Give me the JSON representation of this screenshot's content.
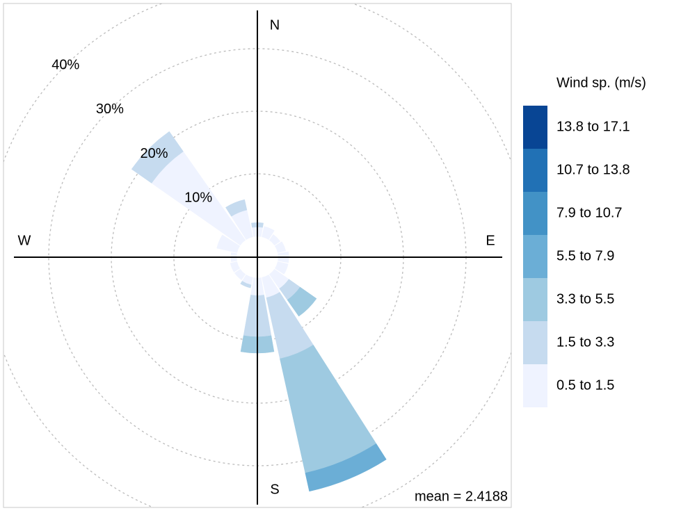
{
  "chart_data": {
    "type": "windrose",
    "x": [
      0,
      22.5,
      45,
      67.5,
      90,
      112.5,
      135,
      157.5,
      180,
      202.5,
      225,
      247.5,
      270,
      292.5,
      315,
      337.5
    ],
    "series": [
      {
        "name": "0.5 to 1.5",
        "color": "#eff3ff",
        "values": [
          1.5,
          1.7,
          1.1,
          1.3,
          1.7,
          1.7,
          2.8,
          3.3,
          2.8,
          1.2,
          1.1,
          1.1,
          0.9,
          3.3,
          17.3,
          4.4
        ]
      },
      {
        "name": "1.5 to 3.3",
        "color": "#c6dbef",
        "values": [
          0.7,
          0,
          0,
          0,
          0,
          0,
          2.2,
          10,
          6.6,
          0.5,
          0,
          0,
          0,
          0,
          3.9,
          1.7
        ]
      },
      {
        "name": "3.3 to 5.5",
        "color": "#9ecae1",
        "values": [
          0,
          0,
          0,
          0,
          0,
          0,
          3.2,
          18.7,
          2.6,
          0,
          0,
          0,
          0,
          0,
          0,
          0
        ]
      },
      {
        "name": "5.5 to 7.9",
        "color": "#6baed6",
        "values": [
          0,
          0,
          0,
          0,
          0,
          0,
          0,
          3,
          0,
          0,
          0,
          0,
          0,
          0,
          0,
          0
        ]
      },
      {
        "name": "7.9 to 10.7",
        "color": "#4292c6",
        "values": [
          0,
          0,
          0,
          0,
          0,
          0,
          0,
          0,
          0,
          0,
          0,
          0,
          0,
          0,
          0,
          0
        ]
      },
      {
        "name": "10.7 to 13.8",
        "color": "#2171b5",
        "values": [
          0,
          0,
          0,
          0,
          0,
          0,
          0,
          0,
          0,
          0,
          0,
          0,
          0,
          0,
          0,
          0
        ]
      },
      {
        "name": "13.8 to 17.1",
        "color": "#084594",
        "values": [
          0,
          0,
          0,
          0,
          0,
          0,
          0,
          0,
          0,
          0,
          0,
          0,
          0,
          0,
          0,
          0
        ]
      }
    ],
    "rlim": [
      0,
      40
    ],
    "rticks": [
      {
        "value": 10,
        "label": "10%"
      },
      {
        "value": 20,
        "label": "20%"
      },
      {
        "value": 30,
        "label": "30%"
      },
      {
        "value": 40,
        "label": "40%"
      }
    ],
    "compass": {
      "n": "N",
      "e": "E",
      "s": "S",
      "w": "W"
    },
    "legend_title": "Wind sp. (m/s)",
    "annotation": "mean = 2.4188",
    "annotation_color": "#2e8b22"
  }
}
